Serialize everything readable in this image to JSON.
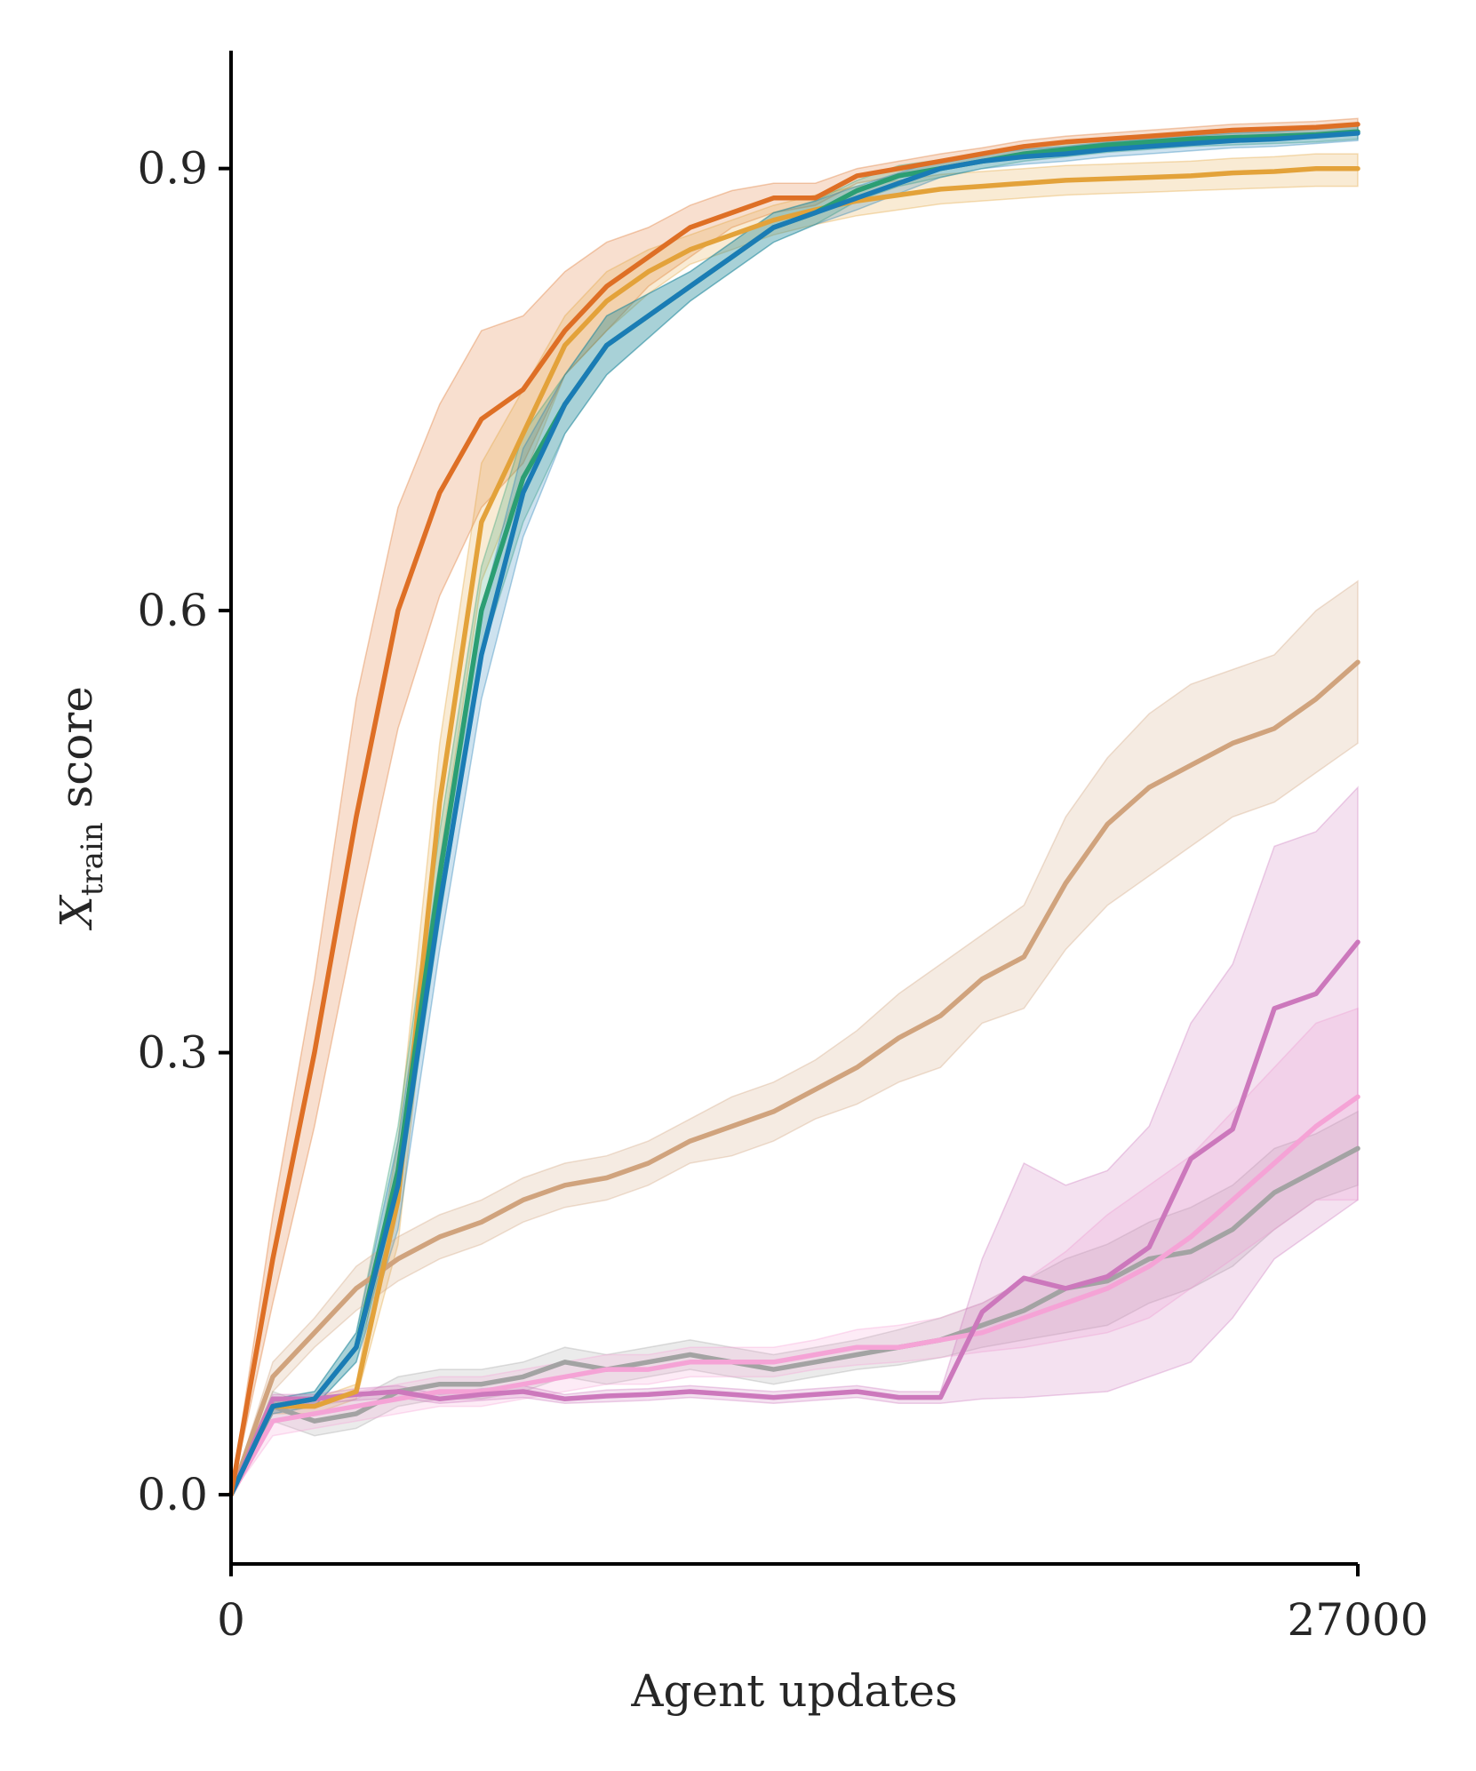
{
  "chart_data": {
    "type": "line",
    "title": "",
    "xlabel": "Agent updates",
    "ylabel": {
      "main": "X",
      "subscript": "train",
      "suffix": " score"
    },
    "xlim": [
      0,
      27000
    ],
    "ylim": [
      -0.047,
      0.98
    ],
    "xticks": [
      0,
      27000
    ],
    "xtick_labels": [
      "0",
      "27000"
    ],
    "yticks": [
      0.0,
      0.3,
      0.6,
      0.9
    ],
    "ytick_labels": [
      "0.0",
      "0.3",
      "0.6",
      "0.9"
    ],
    "grid": false,
    "legend": "none",
    "x": [
      0,
      1000,
      2000,
      3000,
      4000,
      5000,
      6000,
      7000,
      8000,
      9000,
      10000,
      11000,
      12000,
      13000,
      14000,
      15000,
      16000,
      17000,
      18000,
      19000,
      20000,
      21000,
      22000,
      23000,
      24000,
      25000,
      26000,
      27000
    ],
    "series": [
      {
        "name": "dark-orange",
        "color": "#de6f25",
        "values": [
          0.0,
          0.16,
          0.3,
          0.46,
          0.6,
          0.68,
          0.73,
          0.75,
          0.79,
          0.82,
          0.84,
          0.86,
          0.87,
          0.88,
          0.88,
          0.895,
          0.9,
          0.905,
          0.91,
          0.915,
          0.918,
          0.92,
          0.922,
          0.924,
          0.926,
          0.927,
          0.928,
          0.93
        ],
        "lower": [
          0.0,
          0.13,
          0.25,
          0.39,
          0.52,
          0.61,
          0.67,
          0.7,
          0.76,
          0.79,
          0.82,
          0.84,
          0.86,
          0.87,
          0.875,
          0.89,
          0.895,
          0.9,
          0.906,
          0.911,
          0.914,
          0.916,
          0.918,
          0.92,
          0.922,
          0.923,
          0.924,
          0.926
        ],
        "upper": [
          0.0,
          0.19,
          0.35,
          0.54,
          0.67,
          0.74,
          0.79,
          0.8,
          0.83,
          0.85,
          0.86,
          0.875,
          0.885,
          0.89,
          0.89,
          0.9,
          0.905,
          0.91,
          0.914,
          0.919,
          0.922,
          0.924,
          0.926,
          0.928,
          0.93,
          0.931,
          0.932,
          0.934
        ]
      },
      {
        "name": "gold",
        "color": "#e3a23a",
        "values": [
          0.0,
          0.06,
          0.06,
          0.07,
          0.2,
          0.47,
          0.66,
          0.72,
          0.78,
          0.81,
          0.83,
          0.845,
          0.855,
          0.865,
          0.872,
          0.878,
          0.882,
          0.886,
          0.888,
          0.89,
          0.892,
          0.893,
          0.894,
          0.895,
          0.897,
          0.898,
          0.9,
          0.9
        ],
        "lower": [
          0.0,
          0.055,
          0.055,
          0.065,
          0.17,
          0.43,
          0.62,
          0.69,
          0.76,
          0.79,
          0.815,
          0.835,
          0.845,
          0.855,
          0.862,
          0.868,
          0.872,
          0.876,
          0.878,
          0.88,
          0.882,
          0.883,
          0.884,
          0.885,
          0.886,
          0.887,
          0.888,
          0.888
        ],
        "upper": [
          0.0,
          0.065,
          0.065,
          0.075,
          0.24,
          0.51,
          0.7,
          0.75,
          0.8,
          0.83,
          0.845,
          0.855,
          0.865,
          0.875,
          0.882,
          0.888,
          0.892,
          0.896,
          0.898,
          0.9,
          0.902,
          0.903,
          0.904,
          0.905,
          0.907,
          0.908,
          0.91,
          0.91
        ]
      },
      {
        "name": "green",
        "color": "#2b9e73",
        "values": [
          0.0,
          0.06,
          0.065,
          0.1,
          0.22,
          0.42,
          0.6,
          0.69,
          0.74,
          0.78,
          0.8,
          0.82,
          0.84,
          0.86,
          0.87,
          0.885,
          0.895,
          0.9,
          0.905,
          0.91,
          0.913,
          0.916,
          0.918,
          0.92,
          0.921,
          0.922,
          0.923,
          0.925
        ],
        "lower": [
          0.0,
          0.055,
          0.06,
          0.09,
          0.2,
          0.39,
          0.57,
          0.66,
          0.72,
          0.76,
          0.785,
          0.81,
          0.83,
          0.85,
          0.862,
          0.878,
          0.888,
          0.894,
          0.9,
          0.905,
          0.908,
          0.911,
          0.913,
          0.915,
          0.916,
          0.917,
          0.918,
          0.92
        ],
        "upper": [
          0.0,
          0.065,
          0.07,
          0.11,
          0.25,
          0.45,
          0.63,
          0.72,
          0.76,
          0.8,
          0.815,
          0.83,
          0.85,
          0.87,
          0.878,
          0.892,
          0.902,
          0.906,
          0.91,
          0.915,
          0.918,
          0.921,
          0.923,
          0.925,
          0.926,
          0.927,
          0.928,
          0.93
        ]
      },
      {
        "name": "blue",
        "color": "#1a7cb5",
        "values": [
          0.0,
          0.06,
          0.065,
          0.1,
          0.21,
          0.4,
          0.57,
          0.68,
          0.74,
          0.78,
          0.8,
          0.82,
          0.84,
          0.86,
          0.87,
          0.88,
          0.89,
          0.9,
          0.905,
          0.908,
          0.91,
          0.913,
          0.915,
          0.917,
          0.919,
          0.92,
          0.922,
          0.924
        ],
        "lower": [
          0.0,
          0.055,
          0.06,
          0.09,
          0.18,
          0.37,
          0.54,
          0.65,
          0.72,
          0.76,
          0.785,
          0.81,
          0.83,
          0.85,
          0.862,
          0.872,
          0.883,
          0.894,
          0.9,
          0.903,
          0.905,
          0.908,
          0.91,
          0.912,
          0.914,
          0.915,
          0.917,
          0.919
        ],
        "upper": [
          0.0,
          0.065,
          0.07,
          0.11,
          0.24,
          0.43,
          0.6,
          0.71,
          0.76,
          0.8,
          0.815,
          0.83,
          0.85,
          0.87,
          0.878,
          0.888,
          0.897,
          0.906,
          0.91,
          0.913,
          0.915,
          0.918,
          0.92,
          0.922,
          0.924,
          0.925,
          0.927,
          0.929
        ]
      },
      {
        "name": "tan",
        "color": "#d0a37d",
        "values": [
          0.0,
          0.08,
          0.11,
          0.14,
          0.16,
          0.175,
          0.185,
          0.2,
          0.21,
          0.215,
          0.225,
          0.24,
          0.25,
          0.26,
          0.275,
          0.29,
          0.31,
          0.325,
          0.35,
          0.365,
          0.415,
          0.455,
          0.48,
          0.495,
          0.51,
          0.52,
          0.54,
          0.565
        ],
        "lower": [
          0.0,
          0.07,
          0.1,
          0.125,
          0.145,
          0.16,
          0.17,
          0.185,
          0.195,
          0.2,
          0.21,
          0.225,
          0.23,
          0.24,
          0.255,
          0.265,
          0.28,
          0.29,
          0.32,
          0.33,
          0.37,
          0.4,
          0.42,
          0.44,
          0.46,
          0.47,
          0.49,
          0.51
        ],
        "upper": [
          0.0,
          0.09,
          0.12,
          0.155,
          0.175,
          0.19,
          0.2,
          0.215,
          0.225,
          0.23,
          0.24,
          0.255,
          0.27,
          0.28,
          0.295,
          0.315,
          0.34,
          0.36,
          0.38,
          0.4,
          0.46,
          0.5,
          0.53,
          0.55,
          0.56,
          0.57,
          0.6,
          0.62
        ]
      },
      {
        "name": "gray",
        "color": "#a3a3a3",
        "values": [
          0.0,
          0.06,
          0.05,
          0.055,
          0.07,
          0.075,
          0.075,
          0.08,
          0.09,
          0.085,
          0.09,
          0.095,
          0.09,
          0.085,
          0.09,
          0.095,
          0.1,
          0.105,
          0.115,
          0.125,
          0.14,
          0.145,
          0.16,
          0.165,
          0.18,
          0.205,
          0.22,
          0.235
        ],
        "lower": [
          0.0,
          0.05,
          0.04,
          0.045,
          0.06,
          0.065,
          0.065,
          0.07,
          0.08,
          0.075,
          0.08,
          0.085,
          0.08,
          0.075,
          0.08,
          0.085,
          0.088,
          0.093,
          0.1,
          0.105,
          0.11,
          0.115,
          0.13,
          0.14,
          0.155,
          0.18,
          0.2,
          0.21
        ],
        "upper": [
          0.0,
          0.07,
          0.06,
          0.065,
          0.08,
          0.085,
          0.085,
          0.09,
          0.1,
          0.095,
          0.1,
          0.105,
          0.1,
          0.095,
          0.1,
          0.105,
          0.112,
          0.12,
          0.13,
          0.145,
          0.16,
          0.17,
          0.185,
          0.195,
          0.21,
          0.235,
          0.245,
          0.26
        ]
      },
      {
        "name": "pink",
        "color": "#f5a3d6",
        "values": [
          0.0,
          0.05,
          0.055,
          0.06,
          0.065,
          0.07,
          0.07,
          0.075,
          0.08,
          0.085,
          0.085,
          0.09,
          0.09,
          0.09,
          0.095,
          0.1,
          0.1,
          0.105,
          0.11,
          0.12,
          0.13,
          0.14,
          0.155,
          0.175,
          0.2,
          0.225,
          0.25,
          0.27
        ],
        "lower": [
          0.0,
          0.04,
          0.045,
          0.05,
          0.055,
          0.06,
          0.06,
          0.065,
          0.07,
          0.075,
          0.075,
          0.08,
          0.08,
          0.08,
          0.085,
          0.088,
          0.09,
          0.093,
          0.097,
          0.1,
          0.105,
          0.11,
          0.12,
          0.14,
          0.16,
          0.18,
          0.2,
          0.2
        ],
        "upper": [
          0.0,
          0.06,
          0.065,
          0.07,
          0.075,
          0.08,
          0.08,
          0.085,
          0.09,
          0.095,
          0.095,
          0.1,
          0.1,
          0.1,
          0.105,
          0.112,
          0.115,
          0.12,
          0.13,
          0.145,
          0.165,
          0.19,
          0.21,
          0.23,
          0.26,
          0.29,
          0.32,
          0.33
        ]
      },
      {
        "name": "magenta",
        "color": "#cc78bc",
        "values": [
          0.0,
          0.065,
          0.065,
          0.068,
          0.07,
          0.065,
          0.068,
          0.07,
          0.065,
          0.067,
          0.068,
          0.07,
          0.068,
          0.066,
          0.068,
          0.07,
          0.066,
          0.066,
          0.124,
          0.147,
          0.14,
          0.148,
          0.168,
          0.228,
          0.248,
          0.33,
          0.34,
          0.375
        ],
        "lower": [
          0.0,
          0.062,
          0.062,
          0.064,
          0.066,
          0.062,
          0.064,
          0.066,
          0.062,
          0.063,
          0.064,
          0.066,
          0.064,
          0.062,
          0.064,
          0.066,
          0.062,
          0.062,
          0.065,
          0.066,
          0.068,
          0.07,
          0.08,
          0.09,
          0.12,
          0.16,
          0.18,
          0.2
        ],
        "upper": [
          0.0,
          0.068,
          0.068,
          0.072,
          0.074,
          0.068,
          0.072,
          0.074,
          0.068,
          0.071,
          0.072,
          0.074,
          0.072,
          0.07,
          0.072,
          0.074,
          0.07,
          0.07,
          0.16,
          0.225,
          0.21,
          0.22,
          0.25,
          0.32,
          0.36,
          0.44,
          0.45,
          0.48
        ]
      }
    ]
  }
}
